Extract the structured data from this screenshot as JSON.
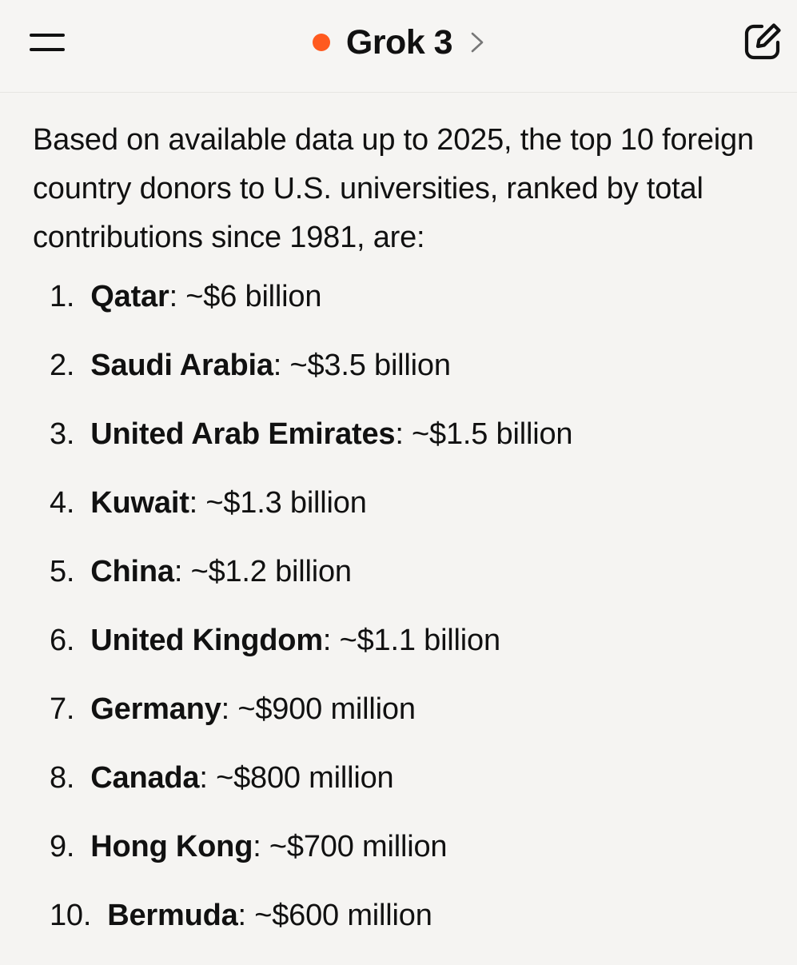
{
  "header": {
    "menu_icon": "hamburger-menu-icon",
    "title": "Grok 3",
    "status_dot_color": "#ff5a1f",
    "chevron_icon": "chevron-right-icon",
    "edit_icon": "new-chat-edit-icon"
  },
  "message": {
    "intro": "Based on available data up to 2025, the top 10 foreign country donors to U.S. universities, ranked by total contributions since 1981, are:",
    "items": [
      {
        "num": "1.",
        "country": "Qatar",
        "amount": ": ~$6 billion"
      },
      {
        "num": "2.",
        "country": "Saudi Arabia",
        "amount": ": ~$3.5 billion"
      },
      {
        "num": "3.",
        "country": "United Arab Emirates",
        "amount": ": ~$1.5 billion"
      },
      {
        "num": "4.",
        "country": "Kuwait",
        "amount": ": ~$1.3 billion"
      },
      {
        "num": "5.",
        "country": "China",
        "amount": ": ~$1.2 billion"
      },
      {
        "num": "6.",
        "country": "United Kingdom",
        "amount": ": ~$1.1 billion"
      },
      {
        "num": "7.",
        "country": "Germany",
        "amount": ": ~$900 million"
      },
      {
        "num": "8.",
        "country": "Canada",
        "amount": ": ~$800 million"
      },
      {
        "num": "9.",
        "country": "Hong Kong",
        "amount": ": ~$700 million"
      },
      {
        "num": "10.",
        "country": "Bermuda",
        "amount": ": ~$600 million"
      }
    ]
  }
}
